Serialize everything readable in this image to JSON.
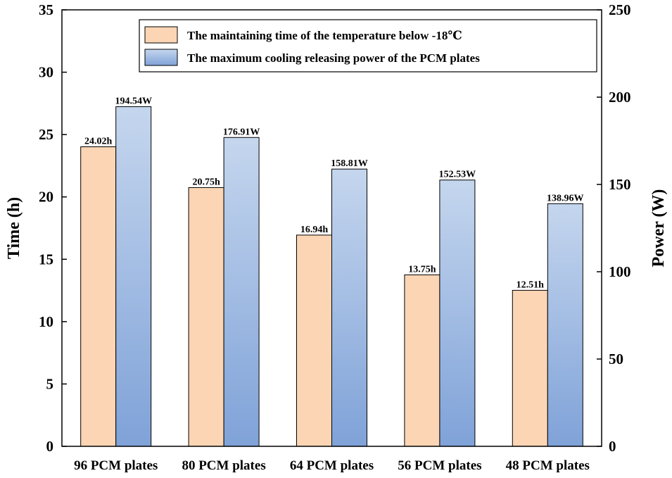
{
  "chart_data": {
    "type": "bar",
    "categories": [
      "96 PCM plates",
      "80 PCM plates",
      "64 PCM plates",
      "56 PCM plates",
      "48 PCM plates"
    ],
    "series": [
      {
        "name": "The maintaining time of the temperature below -18℃",
        "axis": "left",
        "values": [
          24.02,
          20.75,
          16.94,
          13.75,
          12.51
        ],
        "labels": [
          "24.02h",
          "20.75h",
          "16.94h",
          "13.75h",
          "12.51h"
        ],
        "color": "#fcd5b4"
      },
      {
        "name": "The maximum cooling releasing power of the PCM plates",
        "axis": "right",
        "values": [
          194.54,
          176.91,
          158.81,
          152.53,
          138.96
        ],
        "labels": [
          "194.54W",
          "176.91W",
          "158.81W",
          "152.53W",
          "138.96W"
        ],
        "color_top": "#c5d6ee",
        "color_bottom": "#7fa2d8"
      }
    ],
    "ylabel": "Time (h)",
    "ylabel_right": "Power (W)",
    "ylim": [
      0,
      35
    ],
    "ylim_right": [
      0,
      250
    ],
    "yticks": [
      "0",
      "5",
      "10",
      "15",
      "20",
      "25",
      "30",
      "35"
    ],
    "yticks_right": [
      "0",
      "50",
      "100",
      "150",
      "200",
      "250"
    ],
    "legend_position": "top-right",
    "grid": false
  }
}
